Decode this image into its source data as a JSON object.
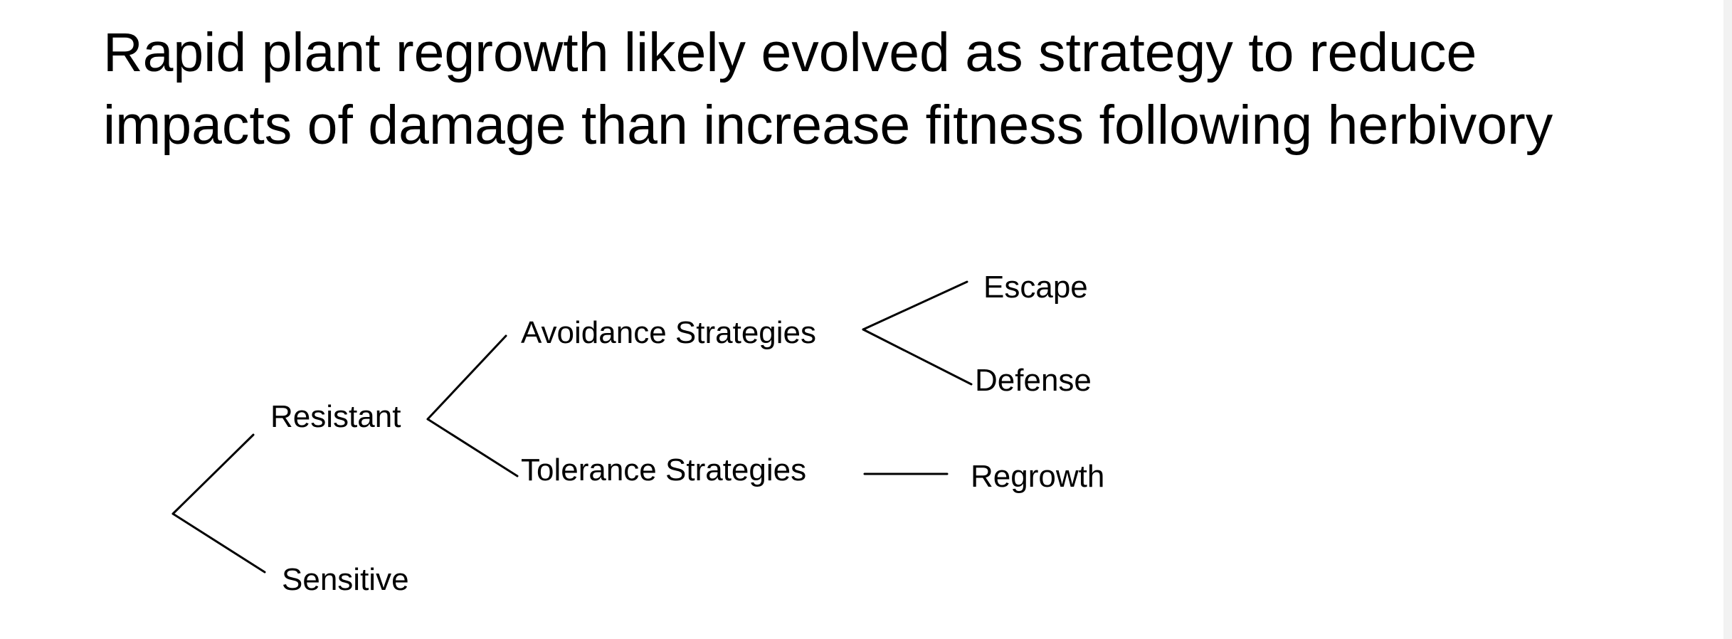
{
  "slide": {
    "title_lines": [
      "Rapid plant regrowth likely evolved as strategy to reduce",
      "impacts of damage than increase fitness following herbivory"
    ]
  },
  "diagram": {
    "nodes": {
      "resistant": "Resistant",
      "sensitive": "Sensitive",
      "avoidance": "Avoidance Strategies",
      "tolerance": "Tolerance Strategies",
      "escape": "Escape",
      "defense": "Defense",
      "regrowth": "Regrowth"
    },
    "edges": [
      [
        "root",
        "resistant"
      ],
      [
        "root",
        "sensitive"
      ],
      [
        "resistant",
        "avoidance"
      ],
      [
        "resistant",
        "tolerance"
      ],
      [
        "avoidance",
        "escape"
      ],
      [
        "avoidance",
        "defense"
      ],
      [
        "tolerance",
        "regrowth"
      ]
    ]
  }
}
